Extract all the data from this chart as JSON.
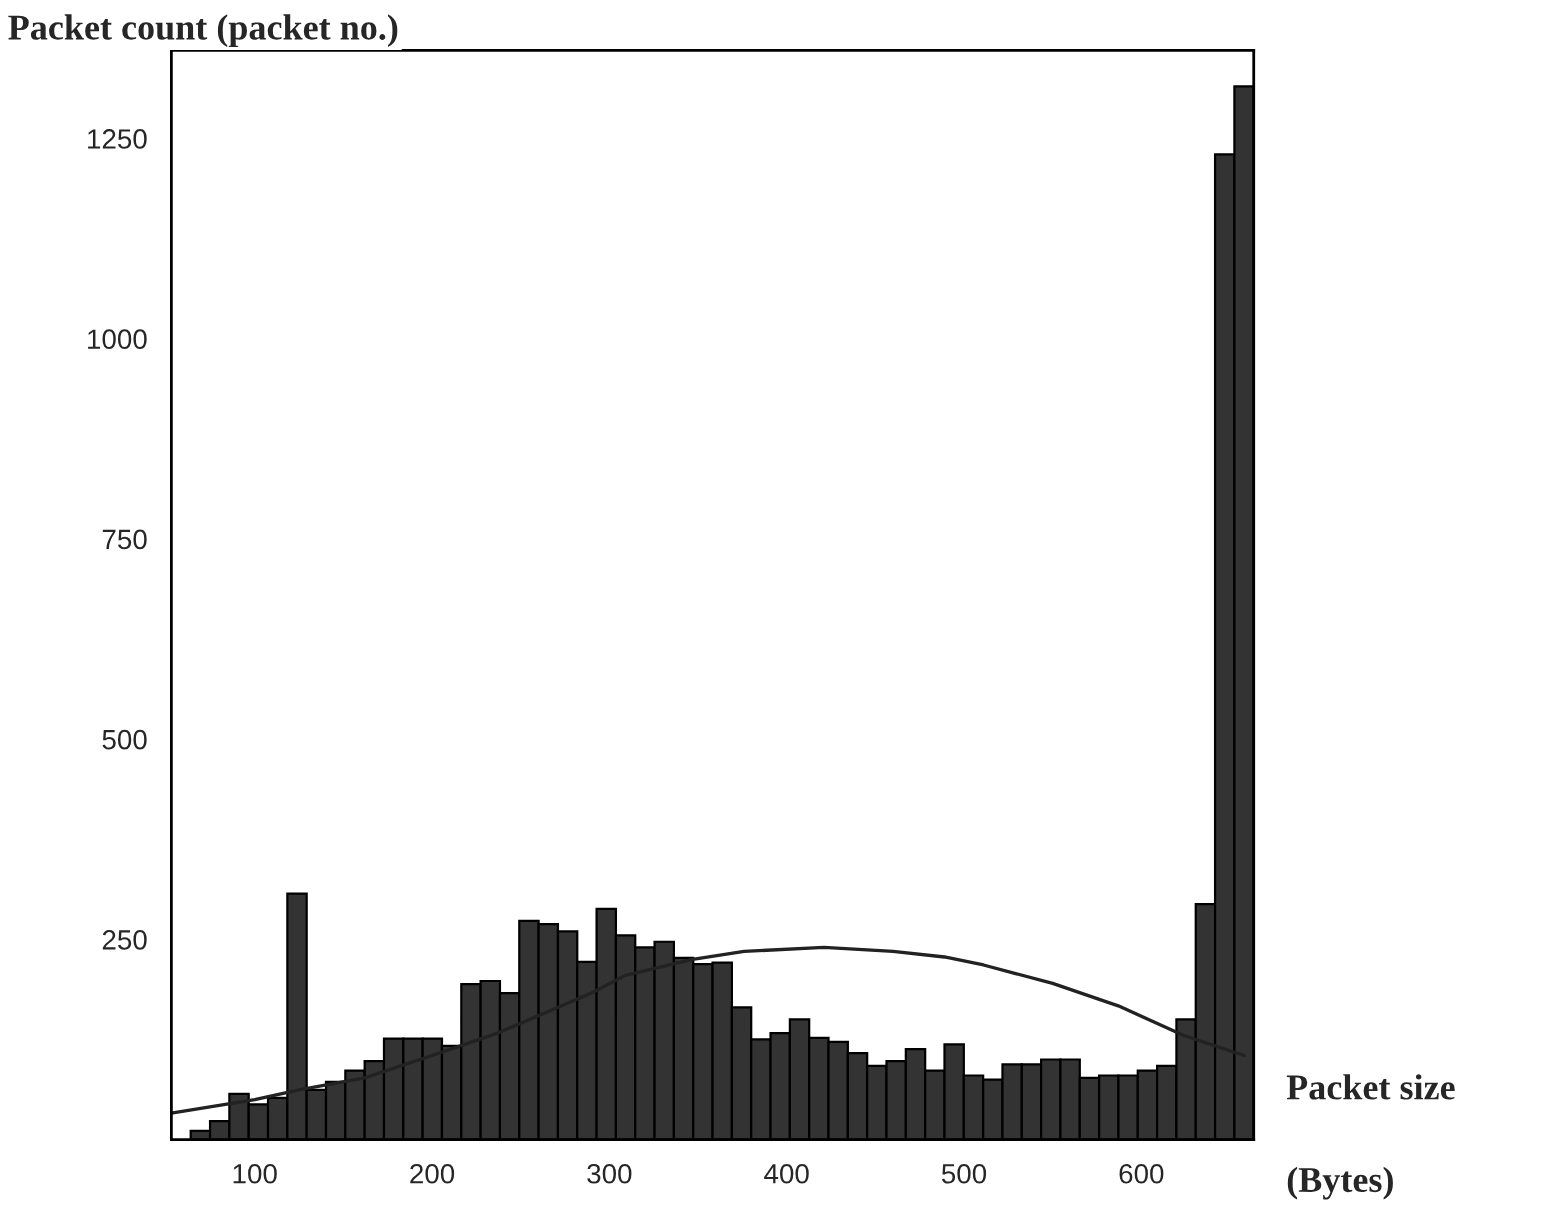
{
  "chart_data": {
    "type": "histogram",
    "ylabel": "Packet count (packet no.)",
    "xlabel": "Packet size",
    "annotations": [
      "(Bytes)"
    ],
    "bins": [
      53,
      63.9,
      74.8,
      85.7,
      96.6,
      107.5,
      118.4,
      129.3,
      140.2,
      151.1,
      162,
      172.9,
      183.8,
      194.7,
      205.6,
      216.5,
      227.4,
      238.3,
      249.2,
      260.1,
      271,
      281.9,
      292.8,
      303.7,
      314.6,
      325.5,
      336.4,
      347.3,
      358.2,
      369.1,
      380,
      390.9,
      401.8,
      412.7,
      423.6,
      434.5,
      445.4,
      456.3,
      467.2,
      478.1,
      489,
      499.9,
      510.8,
      521.7,
      532.6,
      543.5,
      554.4,
      565.3,
      576.2,
      587.1,
      598,
      608.9,
      619.8,
      630.7,
      641.6,
      652.5,
      663.4
    ],
    "values": [
      null,
      11,
      23,
      57,
      44,
      52,
      307,
      62,
      72,
      86,
      98,
      126,
      126,
      126,
      117,
      194,
      198,
      183,
      273,
      269,
      260,
      222,
      288,
      255,
      240,
      247,
      227,
      219,
      221,
      165,
      125,
      133,
      150,
      127,
      122,
      108,
      92,
      98,
      113,
      86,
      119,
      80,
      75,
      94,
      94,
      100,
      100,
      77,
      80,
      80,
      86,
      92,
      150,
      294,
      1230,
      1315
    ],
    "color": "#333333",
    "series": [
      {
        "type": "line",
        "color": "#222222",
        "x": [
          53,
          100,
          125,
          162,
          200,
          237,
          290,
          309,
          347,
          376,
          421,
          460,
          489,
          511,
          550,
          587,
          624,
          658
        ],
        "values": [
          33,
          50,
          62,
          77,
          105,
          133,
          183,
          205,
          225,
          235,
          240,
          235,
          228,
          218,
          195,
          167,
          130,
          105
        ]
      }
    ],
    "xlim": [
      53,
      663.4
    ],
    "ylim": [
      0,
      1360
    ],
    "xticks": [
      100,
      200,
      300,
      400,
      500,
      600
    ],
    "yticks": [
      250,
      500,
      750,
      1000,
      1250
    ],
    "grid": false
  }
}
